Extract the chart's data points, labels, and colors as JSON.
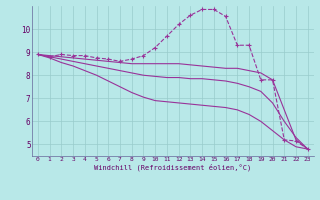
{
  "xlabel": "Windchill (Refroidissement éolien,°C)",
  "background_color": "#b8e8e8",
  "line_color": "#993399",
  "grid_color": "#99cccc",
  "xlim": [
    -0.5,
    23.5
  ],
  "ylim": [
    4.5,
    11.0
  ],
  "yticks": [
    5,
    6,
    7,
    8,
    9,
    10
  ],
  "xticks": [
    0,
    1,
    2,
    3,
    4,
    5,
    6,
    7,
    8,
    9,
    10,
    11,
    12,
    13,
    14,
    15,
    16,
    17,
    18,
    19,
    20,
    21,
    22,
    23
  ],
  "lines": [
    {
      "x": [
        0,
        1,
        2,
        3,
        4,
        5,
        6,
        7,
        8,
        9,
        10,
        11,
        12,
        13,
        14,
        15,
        16,
        17,
        18,
        19,
        20,
        21,
        22,
        23
      ],
      "y": [
        8.9,
        8.8,
        8.9,
        8.85,
        8.85,
        8.75,
        8.7,
        8.6,
        8.7,
        8.85,
        9.2,
        9.7,
        10.2,
        10.6,
        10.85,
        10.85,
        10.55,
        9.3,
        9.3,
        7.8,
        7.8,
        5.2,
        5.15,
        4.8
      ],
      "marker": true,
      "linestyle": "--"
    },
    {
      "x": [
        0,
        1,
        2,
        3,
        4,
        5,
        6,
        7,
        8,
        9,
        10,
        11,
        12,
        13,
        14,
        15,
        16,
        17,
        18,
        19,
        20,
        21,
        22,
        23
      ],
      "y": [
        8.9,
        8.85,
        8.8,
        8.75,
        8.7,
        8.65,
        8.6,
        8.55,
        8.5,
        8.5,
        8.5,
        8.5,
        8.5,
        8.45,
        8.4,
        8.35,
        8.3,
        8.3,
        8.2,
        8.1,
        7.8,
        6.5,
        5.2,
        4.8
      ],
      "marker": false,
      "linestyle": "-"
    },
    {
      "x": [
        0,
        1,
        2,
        3,
        4,
        5,
        6,
        7,
        8,
        9,
        10,
        11,
        12,
        13,
        14,
        15,
        16,
        17,
        18,
        19,
        20,
        21,
        22,
        23
      ],
      "y": [
        8.9,
        8.8,
        8.7,
        8.6,
        8.5,
        8.4,
        8.3,
        8.2,
        8.1,
        8.0,
        7.95,
        7.9,
        7.9,
        7.85,
        7.85,
        7.8,
        7.75,
        7.65,
        7.5,
        7.3,
        6.8,
        6.0,
        5.3,
        4.8
      ],
      "marker": false,
      "linestyle": "-"
    },
    {
      "x": [
        0,
        1,
        2,
        3,
        4,
        5,
        6,
        7,
        8,
        9,
        10,
        11,
        12,
        13,
        14,
        15,
        16,
        17,
        18,
        19,
        20,
        21,
        22,
        23
      ],
      "y": [
        8.9,
        8.75,
        8.55,
        8.4,
        8.2,
        8.0,
        7.75,
        7.5,
        7.25,
        7.05,
        6.9,
        6.85,
        6.8,
        6.75,
        6.7,
        6.65,
        6.6,
        6.5,
        6.3,
        6.0,
        5.6,
        5.2,
        4.9,
        4.8
      ],
      "marker": false,
      "linestyle": "-"
    }
  ]
}
